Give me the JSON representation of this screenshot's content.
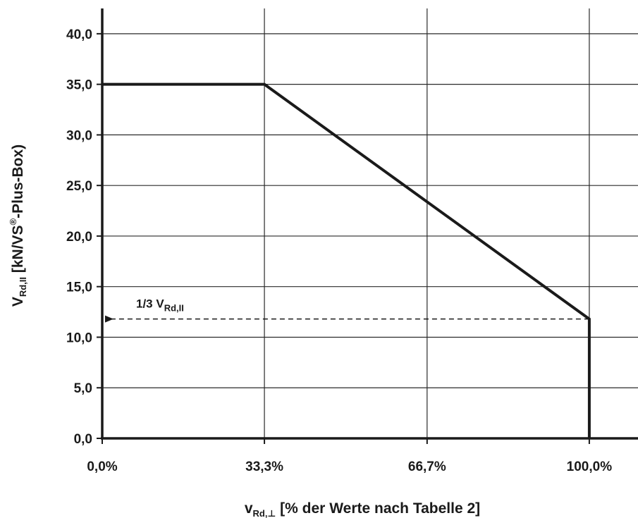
{
  "chart_data": {
    "type": "line",
    "title": "",
    "xlabel": {
      "main": "v",
      "sub": "Rd,⊥",
      "rest": " [% der Werte nach Tabelle 2]"
    },
    "ylabel": {
      "main": "V",
      "sub": "Rd,II",
      "rest": " [kN/VS",
      "sup": "®",
      "rest2": "-Plus-Box)"
    },
    "x_tick_values": [
      0,
      33.3,
      66.7,
      100.0
    ],
    "x_tick_labels": [
      "0,0%",
      "33,3%",
      "66,7%",
      "100,0%"
    ],
    "xlim": [
      0,
      110
    ],
    "y_tick_values": [
      0,
      5,
      10,
      15,
      20,
      25,
      30,
      35,
      40
    ],
    "y_tick_labels": [
      "0,0",
      "5,0",
      "10,0",
      "15,0",
      "20,0",
      "25,0",
      "30,0",
      "35,0",
      "40,0"
    ],
    "ylim": [
      0,
      42.5
    ],
    "grid": true,
    "series": [
      {
        "x": [
          0,
          33.3,
          100.0,
          100.0
        ],
        "y": [
          35.0,
          35.0,
          11.8,
          0.0
        ]
      }
    ],
    "annotation": {
      "label_main": "1/3 V",
      "label_sub": "Rd,II",
      "x_from": 100.0,
      "x_to": 0,
      "y": 11.8,
      "style": "dashed-arrow"
    }
  }
}
